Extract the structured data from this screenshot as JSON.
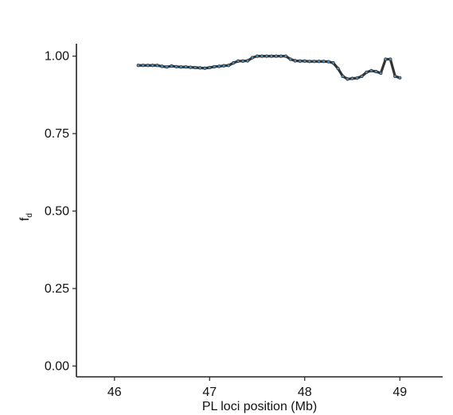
{
  "chart_data": {
    "type": "line",
    "title": "",
    "xlabel": "PL loci position (Mb)",
    "ylabel": "f",
    "ylabel_subscript": "d",
    "xlim": [
      45.6,
      49.45
    ],
    "ylim": [
      -0.035,
      1.04
    ],
    "xticks": [
      46,
      47,
      48,
      49
    ],
    "xtick_labels": [
      "46",
      "47",
      "48",
      "49"
    ],
    "yticks": [
      0.0,
      0.25,
      0.5,
      0.75,
      1.0
    ],
    "ytick_labels": [
      "0.00",
      "0.25",
      "0.50",
      "0.75",
      "1.00"
    ],
    "grid": false,
    "legend": "none",
    "line_color": "#333333",
    "marker_color": "#4a8fbf",
    "series": [
      {
        "x": [
          46.25,
          46.3,
          46.35,
          46.4,
          46.45,
          46.5,
          46.55,
          46.6,
          46.65,
          46.7,
          46.75,
          46.8,
          46.85,
          46.9,
          46.95,
          47.0,
          47.05,
          47.1,
          47.15,
          47.2,
          47.25,
          47.3,
          47.35,
          47.4,
          47.45,
          47.5,
          47.55,
          47.6,
          47.65,
          47.7,
          47.75,
          47.8,
          47.85,
          47.9,
          47.95,
          48.0,
          48.05,
          48.1,
          48.15,
          48.2,
          48.25,
          48.3,
          48.35,
          48.4,
          48.45,
          48.5,
          48.55,
          48.6,
          48.65,
          48.7,
          48.75,
          48.8,
          48.85,
          48.9,
          48.95,
          49.0
        ],
        "y": [
          0.97,
          0.97,
          0.97,
          0.97,
          0.97,
          0.967,
          0.965,
          0.968,
          0.966,
          0.965,
          0.965,
          0.964,
          0.963,
          0.962,
          0.961,
          0.963,
          0.966,
          0.967,
          0.969,
          0.97,
          0.978,
          0.984,
          0.984,
          0.985,
          0.995,
          1.0,
          1.0,
          1.0,
          1.0,
          1.0,
          1.0,
          1.0,
          0.99,
          0.985,
          0.984,
          0.984,
          0.983,
          0.983,
          0.983,
          0.983,
          0.982,
          0.978,
          0.96,
          0.935,
          0.926,
          0.928,
          0.929,
          0.935,
          0.948,
          0.953,
          0.95,
          0.945,
          0.99,
          0.99,
          0.935,
          0.93
        ]
      }
    ]
  }
}
